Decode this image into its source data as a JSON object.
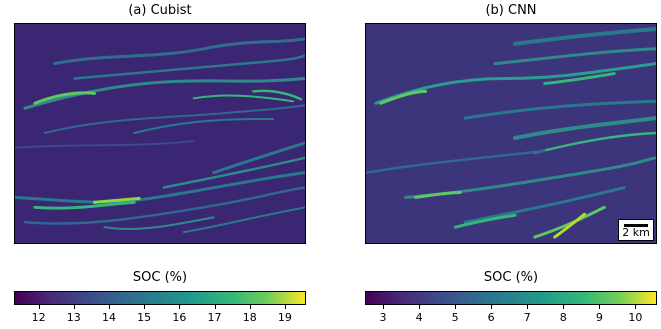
{
  "chart_data": [
    {
      "type": "heatmap",
      "title": "(a) Cubist",
      "colorbar_label": "SOC (%)",
      "colormap": "viridis",
      "value_range": [
        11.3,
        19.6
      ],
      "colorbar_ticks": [
        "12",
        "13",
        "14",
        "15",
        "16",
        "17",
        "18",
        "19"
      ],
      "colors": {
        "low": "#440154",
        "mid": "#21918c",
        "high": "#fde725"
      }
    },
    {
      "type": "heatmap",
      "title": "(b) CNN",
      "colorbar_label": "SOC (%)",
      "colormap": "viridis",
      "value_range": [
        2.5,
        10.6
      ],
      "colorbar_ticks": [
        "3",
        "4",
        "5",
        "6",
        "7",
        "8",
        "9",
        "10"
      ],
      "scale_bar_label": "2 km",
      "colors": {
        "low": "#440154",
        "mid": "#21918c",
        "high": "#fde725"
      }
    }
  ]
}
